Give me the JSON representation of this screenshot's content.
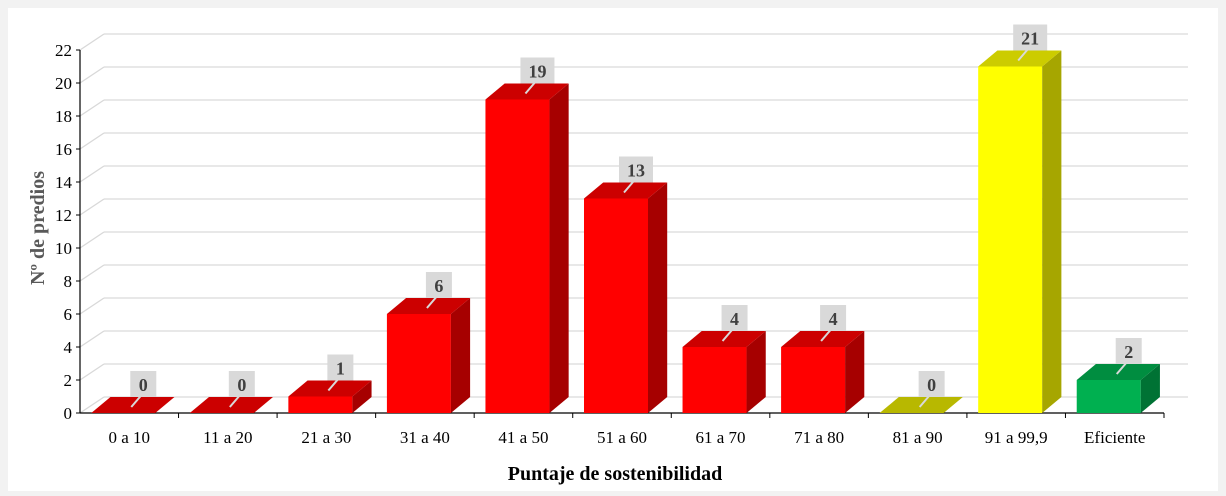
{
  "chart_data": {
    "type": "bar",
    "style": "3d-column",
    "categories": [
      "0 a 10",
      "11 a 20",
      "21 a 30",
      "31 a 40",
      "41 a 50",
      "51 a 60",
      "61 a 70",
      "71 a 80",
      "81 a 90",
      "91 a 99,9",
      "Eficiente"
    ],
    "values": [
      0,
      0,
      1,
      6,
      19,
      13,
      4,
      4,
      0,
      21,
      2
    ],
    "bar_colors": [
      "#ff0000",
      "#ff0000",
      "#ff0000",
      "#ff0000",
      "#ff0000",
      "#ff0000",
      "#ff0000",
      "#ff0000",
      "#e6e600",
      "#ffff00",
      "#00b050"
    ],
    "title": "",
    "xlabel": "Puntaje de sostenibilidad",
    "ylabel": "Nº de predios",
    "ylim": [
      0,
      22
    ],
    "yticks": [
      0,
      2,
      4,
      6,
      8,
      10,
      12,
      14,
      16,
      18,
      20,
      22
    ],
    "grid": true,
    "data_labels": true
  }
}
